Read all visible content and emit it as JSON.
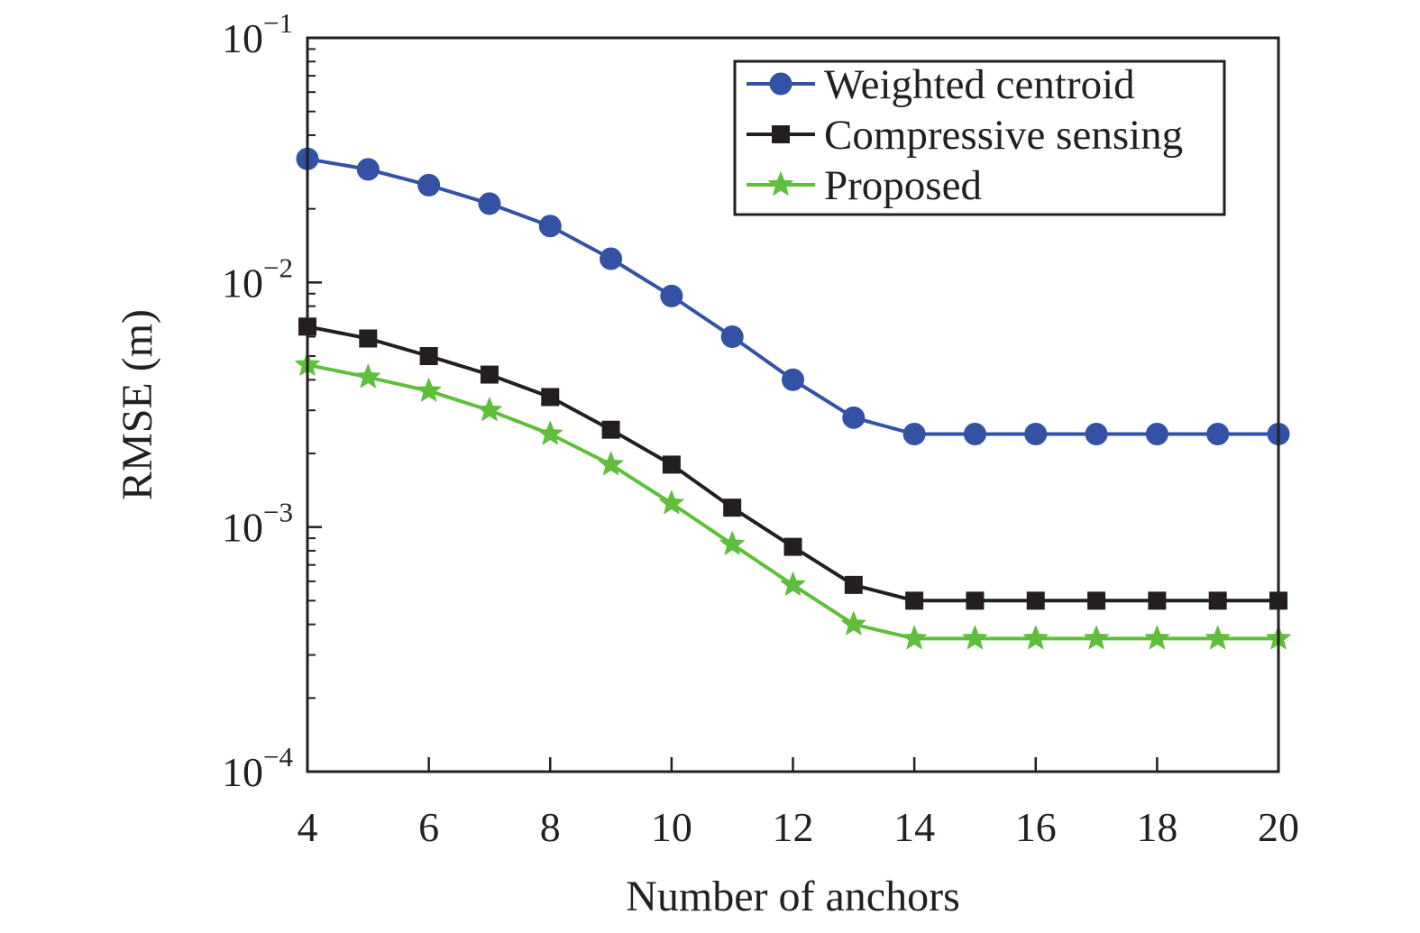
{
  "chart_data": {
    "type": "line",
    "x_scale": "linear",
    "y_scale": "log",
    "xlabel": "Number of anchors",
    "ylabel": "RMSE (m)",
    "xlim": [
      4,
      20
    ],
    "ylim": [
      0.0001,
      0.1
    ],
    "x_ticks": [
      4,
      6,
      8,
      10,
      12,
      14,
      16,
      18,
      20
    ],
    "x_tick_labels": [
      "4",
      "6",
      "8",
      "10",
      "12",
      "14",
      "16",
      "18",
      "20"
    ],
    "y_ticks": [
      0.1,
      0.01,
      0.001,
      0.0001
    ],
    "y_tick_labels": [
      {
        "base": "10",
        "exp": "−1"
      },
      {
        "base": "10",
        "exp": "−2"
      },
      {
        "base": "10",
        "exp": "−3"
      },
      {
        "base": "10",
        "exp": "−4"
      }
    ],
    "grid": false,
    "legend_position": "top-right",
    "x": [
      4,
      5,
      6,
      7,
      8,
      9,
      10,
      11,
      12,
      13,
      14,
      15,
      16,
      17,
      18,
      19,
      20
    ],
    "series": [
      {
        "name": "Weighted centroid",
        "color": "#3352a6",
        "marker": "circle",
        "values": [
          0.032,
          0.029,
          0.025,
          0.021,
          0.017,
          0.0125,
          0.0088,
          0.006,
          0.004,
          0.0028,
          0.0024,
          0.0024,
          0.0024,
          0.0024,
          0.0024,
          0.0024,
          0.0024
        ]
      },
      {
        "name": "Compressive sensing",
        "color": "#231f20",
        "marker": "square",
        "values": [
          0.0066,
          0.0059,
          0.005,
          0.0042,
          0.0034,
          0.0025,
          0.0018,
          0.0012,
          0.00083,
          0.00058,
          0.0005,
          0.0005,
          0.0005,
          0.0005,
          0.0005,
          0.0005,
          0.0005
        ]
      },
      {
        "name": "Proposed",
        "color": "#5fbf3c",
        "marker": "star",
        "values": [
          0.0046,
          0.0041,
          0.0036,
          0.003,
          0.0024,
          0.0018,
          0.00125,
          0.00085,
          0.00058,
          0.0004,
          0.00035,
          0.00035,
          0.00035,
          0.00035,
          0.00035,
          0.00035,
          0.00035
        ]
      }
    ]
  }
}
